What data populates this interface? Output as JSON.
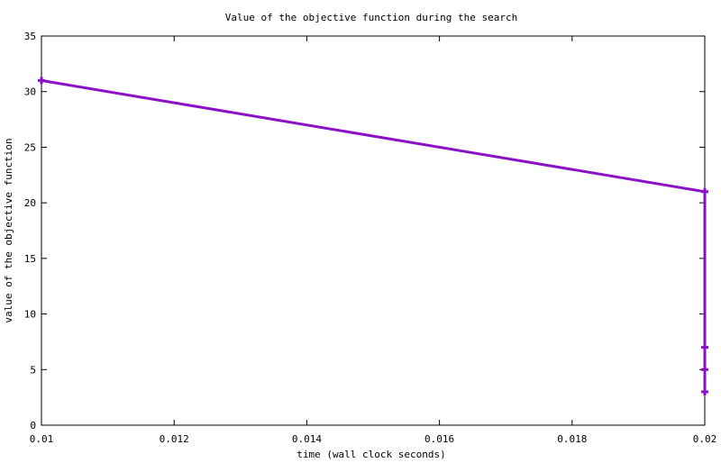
{
  "chart_data": {
    "type": "line",
    "title": "Value of the objective function during the search",
    "xlabel": "time (wall clock seconds)",
    "ylabel": "value of the objective function",
    "xlim": [
      0.01,
      0.02
    ],
    "ylim": [
      0,
      35
    ],
    "x_ticks": [
      "0.01",
      "0.012",
      "0.014",
      "0.016",
      "0.018",
      "0.02"
    ],
    "y_ticks": [
      "0",
      "5",
      "10",
      "15",
      "20",
      "25",
      "30",
      "35"
    ],
    "grid": false,
    "legend": "none",
    "series": [
      {
        "color": "#8b10c8",
        "marker": "plus",
        "points": [
          {
            "x": 0.01,
            "y": 31
          },
          {
            "x": 0.02,
            "y": 21
          },
          {
            "x": 0.02,
            "y": 7
          },
          {
            "x": 0.02,
            "y": 5
          },
          {
            "x": 0.02,
            "y": 3
          }
        ]
      }
    ]
  }
}
